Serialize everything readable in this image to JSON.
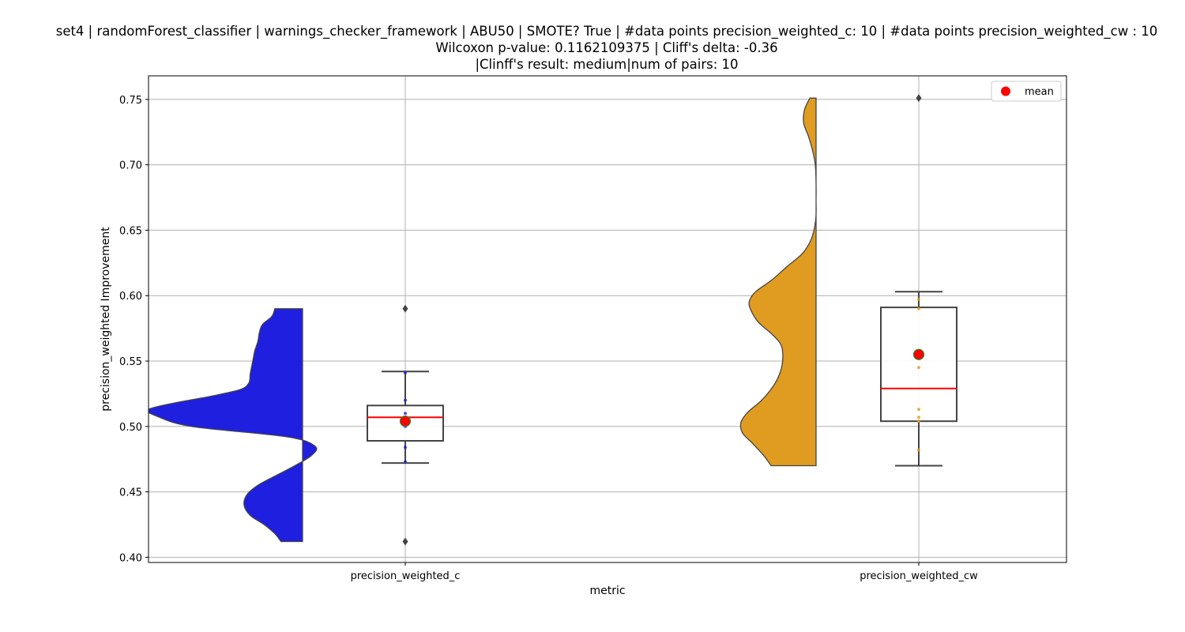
{
  "chart_data": {
    "type": "violin+box",
    "title_lines": [
      "set4 | randomForest_classifier | warnings_checker_framework | ABU50 | SMOTE? True | #data points precision_weighted_c: 10 | #data points precision_weighted_cw : 10",
      "Wilcoxon p-value: 0.1162109375 | Cliff's delta: -0.36",
      "|Clinff's result: medium|num of pairs: 10"
    ],
    "xlabel": "metric",
    "ylabel": "precision_weighted Improvement",
    "categories": [
      "precision_weighted_c",
      "precision_weighted_cw"
    ],
    "ylim": [
      0.396,
      0.768
    ],
    "yticks": [
      0.4,
      0.45,
      0.5,
      0.55,
      0.6,
      0.65,
      0.7,
      0.75
    ],
    "ytick_labels": [
      "0.40",
      "0.45",
      "0.50",
      "0.55",
      "0.60",
      "0.65",
      "0.70",
      "0.75"
    ],
    "grid": true,
    "legend": {
      "position": "top-right",
      "entries": [
        {
          "label": "mean",
          "color": "#ff0000"
        }
      ]
    },
    "series": [
      {
        "name": "precision_weighted_c",
        "color": "#1f1fe0",
        "violin_range": [
          0.412,
          0.59
        ],
        "violin_profile": [
          [
            0.412,
            0.14
          ],
          [
            0.418,
            0.18
          ],
          [
            0.425,
            0.25
          ],
          [
            0.432,
            0.34
          ],
          [
            0.44,
            0.38
          ],
          [
            0.448,
            0.36
          ],
          [
            0.455,
            0.29
          ],
          [
            0.462,
            0.18
          ],
          [
            0.47,
            0.05
          ],
          [
            0.478,
            -0.06
          ],
          [
            0.485,
            -0.08
          ],
          [
            0.492,
            0.1
          ],
          [
            0.5,
            0.72
          ],
          [
            0.508,
            0.95
          ],
          [
            0.513,
            1.0
          ],
          [
            0.518,
            0.83
          ],
          [
            0.523,
            0.6
          ],
          [
            0.528,
            0.41
          ],
          [
            0.533,
            0.35
          ],
          [
            0.54,
            0.34
          ],
          [
            0.546,
            0.33
          ],
          [
            0.552,
            0.32
          ],
          [
            0.558,
            0.31
          ],
          [
            0.565,
            0.29
          ],
          [
            0.572,
            0.28
          ],
          [
            0.578,
            0.26
          ],
          [
            0.584,
            0.2
          ],
          [
            0.59,
            0.18
          ]
        ],
        "box": {
          "q1": 0.489,
          "median": 0.507,
          "q3": 0.516,
          "whisker_low": 0.472,
          "whisker_high": 0.542
        },
        "outliers": [
          0.412,
          0.59
        ],
        "points": [
          0.473,
          0.484,
          0.5,
          0.505,
          0.507,
          0.51,
          0.52,
          0.541
        ],
        "mean": 0.504
      },
      {
        "name": "precision_weighted_cw",
        "color": "#e09c20",
        "violin_range": [
          0.47,
          0.751
        ],
        "violin_profile": [
          [
            0.47,
            0.58
          ],
          [
            0.478,
            0.68
          ],
          [
            0.487,
            0.82
          ],
          [
            0.495,
            0.95
          ],
          [
            0.503,
            0.97
          ],
          [
            0.511,
            0.88
          ],
          [
            0.519,
            0.72
          ],
          [
            0.527,
            0.6
          ],
          [
            0.535,
            0.51
          ],
          [
            0.544,
            0.45
          ],
          [
            0.553,
            0.43
          ],
          [
            0.562,
            0.45
          ],
          [
            0.57,
            0.56
          ],
          [
            0.58,
            0.75
          ],
          [
            0.59,
            0.85
          ],
          [
            0.596,
            0.86
          ],
          [
            0.603,
            0.78
          ],
          [
            0.612,
            0.57
          ],
          [
            0.622,
            0.38
          ],
          [
            0.632,
            0.18
          ],
          [
            0.642,
            0.07
          ],
          [
            0.652,
            0.02
          ],
          [
            0.662,
            0.0
          ],
          [
            0.672,
            0.0
          ],
          [
            0.685,
            0.0
          ],
          [
            0.7,
            0.01
          ],
          [
            0.712,
            0.05
          ],
          [
            0.722,
            0.1
          ],
          [
            0.732,
            0.16
          ],
          [
            0.742,
            0.15
          ],
          [
            0.751,
            0.08
          ]
        ],
        "box": {
          "q1": 0.504,
          "median": 0.529,
          "q3": 0.591,
          "whisker_low": 0.47,
          "whisker_high": 0.603
        },
        "outliers": [
          0.751
        ],
        "points": [
          0.482,
          0.504,
          0.507,
          0.513,
          0.545,
          0.59,
          0.597
        ],
        "mean": 0.555
      }
    ]
  }
}
